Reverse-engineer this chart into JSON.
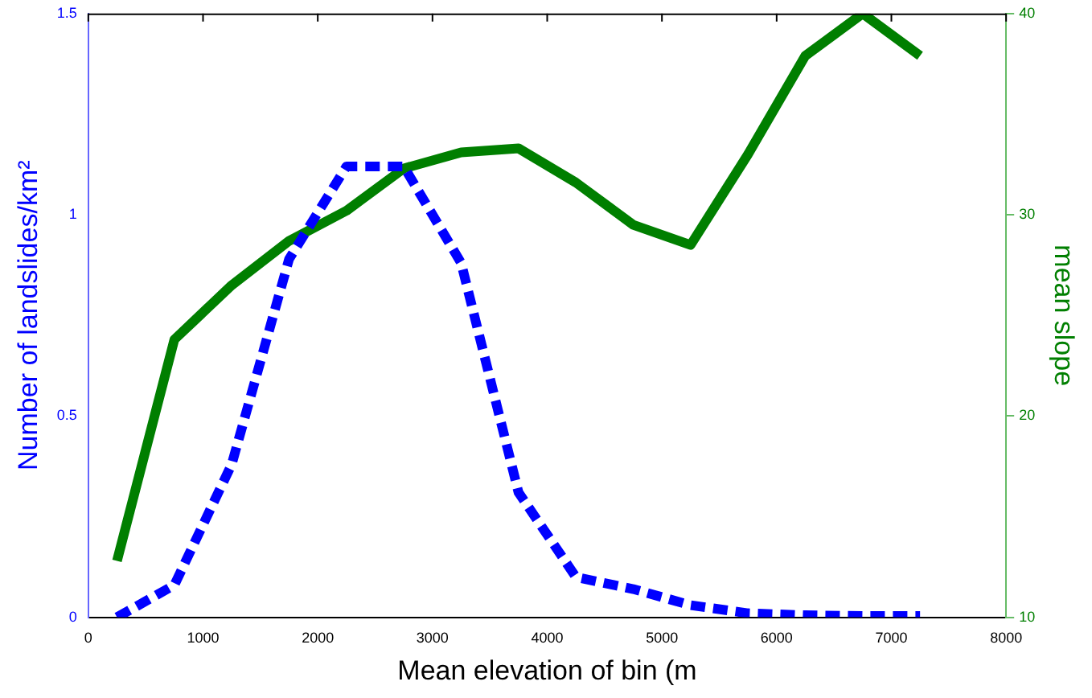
{
  "chart_data": {
    "type": "line",
    "xlabel": "Mean elevation of bin (m",
    "ylabel": "Number of landslides/km²",
    "y2label": "mean slope",
    "x": [
      250,
      750,
      1250,
      1750,
      2250,
      2750,
      3250,
      3750,
      4250,
      4750,
      5250,
      5750,
      6250,
      6750,
      7250
    ],
    "series": [
      {
        "color": "#0000ff",
        "line_style": "dashed",
        "values": [
          0.0,
          0.08,
          0.38,
          0.89,
          1.12,
          1.12,
          0.88,
          0.31,
          0.1,
          0.07,
          0.03,
          0.01,
          0.005,
          0.003,
          0.003
        ]
      },
      {
        "color": "#007f00",
        "line_style": "solid",
        "axis": "y2",
        "values": [
          12.8,
          23.8,
          26.5,
          28.7,
          30.2,
          32.3,
          33.1,
          33.3,
          31.6,
          29.5,
          28.5,
          33.0,
          37.9,
          40,
          37.9
        ]
      }
    ],
    "xlim": [
      0,
      8000
    ],
    "xticks": [
      0,
      1000,
      2000,
      3000,
      4000,
      5000,
      6000,
      7000,
      8000
    ],
    "ylim": [
      0,
      1.5
    ],
    "yticks": [
      0,
      0.5,
      1,
      1.5
    ],
    "y2lim": [
      10,
      40
    ],
    "y2ticks": [
      10,
      20,
      30,
      40
    ],
    "grid": false,
    "legend": false,
    "marker": "none"
  }
}
